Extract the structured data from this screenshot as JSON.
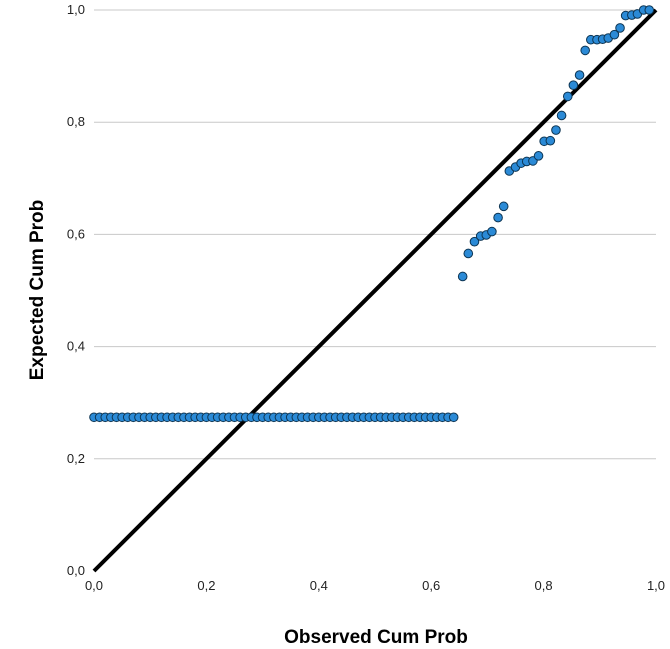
{
  "chart_data": {
    "type": "scatter",
    "title": "",
    "xlabel": "Observed Cum Prob",
    "ylabel": "Expected Cum Prob",
    "xlim": [
      0,
      1
    ],
    "ylim": [
      0,
      1
    ],
    "x_ticks": [
      0,
      0.2,
      0.4,
      0.6,
      0.8,
      1.0
    ],
    "y_ticks": [
      0,
      0.2,
      0.4,
      0.6,
      0.8,
      1.0
    ],
    "x_tick_labels": [
      "0,0",
      "0,2",
      "0,4",
      "0,6",
      "0,8",
      "1,0"
    ],
    "y_tick_labels": [
      "0,0",
      "0,2",
      "0,4",
      "0,6",
      "0,8",
      "1,0"
    ],
    "grid": "horizontal",
    "reference_line": {
      "from": [
        0,
        0
      ],
      "to": [
        1,
        1
      ]
    },
    "colors": {
      "point_fill": "#2b8ad6",
      "point_stroke": "#0d3553",
      "grid": "#c8c8c8",
      "line": "#000000"
    },
    "points_flat_y": 0.274,
    "points_flat_x": [
      0.0,
      0.01,
      0.02,
      0.03,
      0.04,
      0.05,
      0.06,
      0.07,
      0.08,
      0.09,
      0.1,
      0.11,
      0.12,
      0.13,
      0.14,
      0.15,
      0.16,
      0.17,
      0.18,
      0.19,
      0.2,
      0.21,
      0.22,
      0.23,
      0.24,
      0.25,
      0.26,
      0.27,
      0.28,
      0.29,
      0.3,
      0.31,
      0.32,
      0.33,
      0.34,
      0.35,
      0.36,
      0.37,
      0.38,
      0.39,
      0.4,
      0.41,
      0.42,
      0.43,
      0.44,
      0.45,
      0.46,
      0.47,
      0.48,
      0.49,
      0.5,
      0.51,
      0.52,
      0.53,
      0.54,
      0.55,
      0.56,
      0.57,
      0.58,
      0.59,
      0.6,
      0.61,
      0.62,
      0.63,
      0.64
    ],
    "points_rise": [
      [
        0.656,
        0.525
      ],
      [
        0.666,
        0.566
      ],
      [
        0.677,
        0.587
      ],
      [
        0.688,
        0.597
      ],
      [
        0.698,
        0.599
      ],
      [
        0.708,
        0.605
      ],
      [
        0.719,
        0.63
      ],
      [
        0.729,
        0.65
      ],
      [
        0.739,
        0.713
      ],
      [
        0.75,
        0.72
      ],
      [
        0.76,
        0.727
      ],
      [
        0.77,
        0.73
      ],
      [
        0.781,
        0.731
      ],
      [
        0.791,
        0.74
      ],
      [
        0.801,
        0.766
      ],
      [
        0.812,
        0.767
      ],
      [
        0.822,
        0.786
      ],
      [
        0.832,
        0.812
      ],
      [
        0.843,
        0.846
      ],
      [
        0.853,
        0.866
      ],
      [
        0.864,
        0.884
      ],
      [
        0.874,
        0.928
      ],
      [
        0.884,
        0.947
      ],
      [
        0.895,
        0.947
      ],
      [
        0.905,
        0.948
      ],
      [
        0.915,
        0.95
      ],
      [
        0.926,
        0.956
      ],
      [
        0.936,
        0.968
      ],
      [
        0.946,
        0.99
      ],
      [
        0.957,
        0.991
      ],
      [
        0.967,
        0.993
      ],
      [
        0.978,
        1.0
      ],
      [
        0.988,
        1.0
      ]
    ]
  }
}
